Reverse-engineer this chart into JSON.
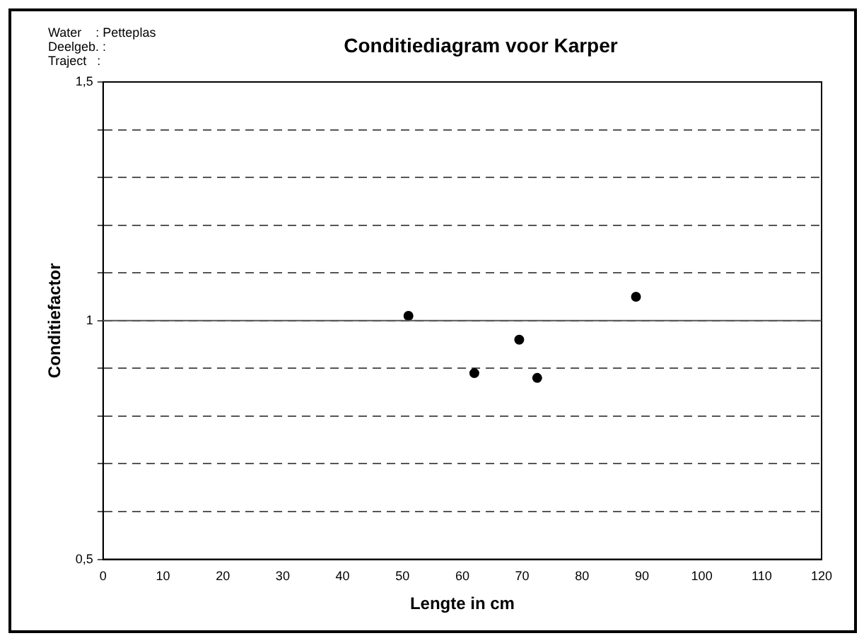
{
  "chart_data": {
    "type": "scatter",
    "title": "Conditiediagram voor Karper",
    "xlabel": "Lengte in cm",
    "ylabel": "Conditiefactor",
    "annotations": [
      "Water    : Petteplas",
      "Deelgeb. :",
      "Traject   :"
    ],
    "x": [
      51,
      62,
      69.5,
      72.5,
      89
    ],
    "series": [
      {
        "color": "#000000",
        "values": [
          1.01,
          0.89,
          0.96,
          0.88,
          1.05
        ]
      }
    ],
    "xlim": [
      0,
      120
    ],
    "xticks": [
      0,
      10,
      20,
      30,
      40,
      50,
      60,
      70,
      80,
      90,
      100,
      110,
      120
    ],
    "ylim": [
      0.5,
      1.5
    ],
    "yticks": [
      {
        "value": 0.5,
        "label": "0,5"
      },
      {
        "value": 0.6,
        "label": null
      },
      {
        "value": 0.7,
        "label": null
      },
      {
        "value": 0.8,
        "label": null
      },
      {
        "value": 0.9,
        "label": null
      },
      {
        "value": 1,
        "label": "1"
      },
      {
        "value": 1.1,
        "label": null
      },
      {
        "value": 1.2,
        "label": null
      },
      {
        "value": 1.3,
        "label": null
      },
      {
        "value": 1.4,
        "label": null
      },
      {
        "value": 1.5,
        "label": "1,5"
      }
    ],
    "ref_lines": [
      {
        "axis": "y",
        "value": 1,
        "label": null
      }
    ],
    "grid": "y",
    "legend": false,
    "marker": "circle"
  }
}
